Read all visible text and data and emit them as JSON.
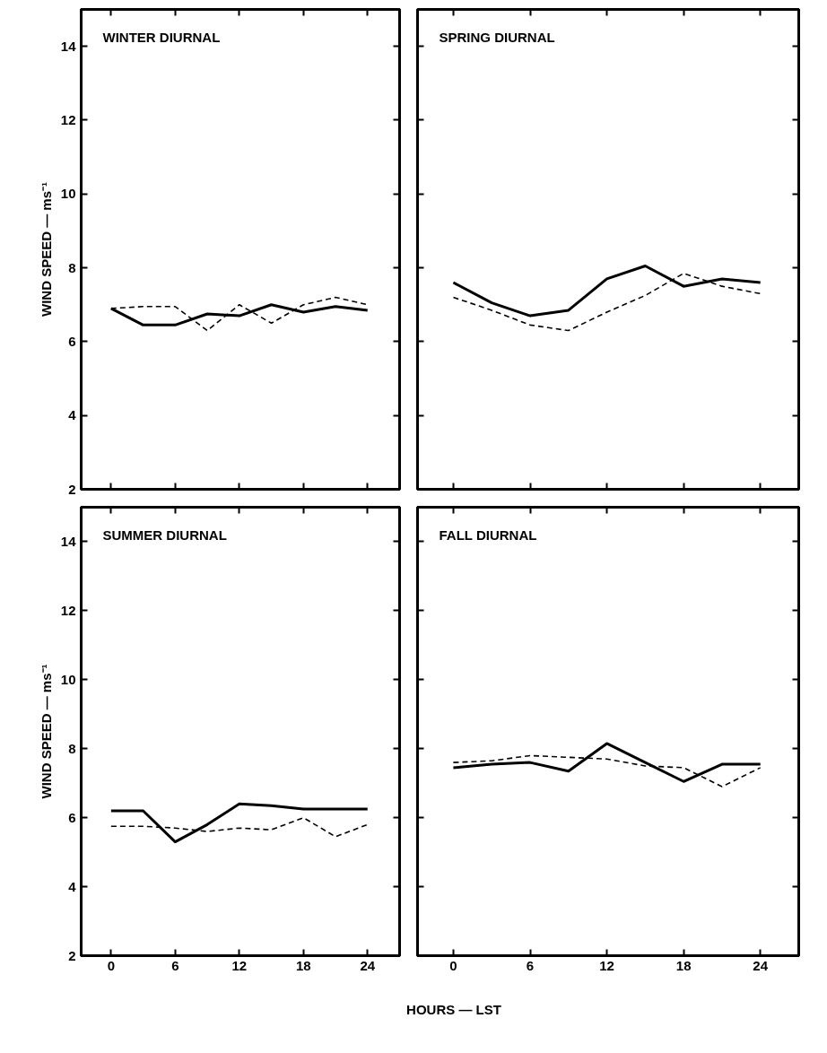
{
  "chart_data": [
    {
      "type": "line",
      "title": "WINTER DIURNAL",
      "ylabel": "WIND SPEED — ms⁻¹",
      "x": [
        0,
        3,
        6,
        9,
        12,
        15,
        18,
        21,
        24
      ],
      "xlim": [
        -2.8,
        27
      ],
      "xticks": [
        0,
        6,
        12,
        18,
        24
      ],
      "ylim": [
        2,
        15
      ],
      "yticks": [
        2,
        4,
        6,
        8,
        10,
        12,
        14
      ],
      "tick_labels": "y",
      "series": [
        {
          "color": "#000000",
          "line_style": "solid",
          "values": [
            6.9,
            6.45,
            6.45,
            6.75,
            6.7,
            7.0,
            6.8,
            6.95,
            6.85
          ]
        },
        {
          "color": "#000000",
          "line_style": "dashed",
          "values": [
            6.9,
            6.95,
            6.95,
            6.3,
            7.0,
            6.5,
            7.0,
            7.2,
            7.0
          ]
        }
      ]
    },
    {
      "type": "line",
      "title": "SPRING DIURNAL",
      "x": [
        0,
        3,
        6,
        9,
        12,
        15,
        18,
        21,
        24
      ],
      "xlim": [
        -2.8,
        27
      ],
      "xticks": [
        0,
        6,
        12,
        18,
        24
      ],
      "ylim": [
        2,
        15
      ],
      "yticks": [
        2,
        4,
        6,
        8,
        10,
        12,
        14
      ],
      "tick_labels": false,
      "series": [
        {
          "color": "#000000",
          "line_style": "solid",
          "values": [
            7.6,
            7.05,
            6.7,
            6.85,
            7.7,
            8.05,
            7.5,
            7.7,
            7.6
          ]
        },
        {
          "color": "#000000",
          "line_style": "dashed",
          "values": [
            7.2,
            6.85,
            6.45,
            6.3,
            6.8,
            7.25,
            7.85,
            7.5,
            7.3
          ]
        }
      ]
    },
    {
      "type": "line",
      "title": "SUMMER DIURNAL",
      "ylabel": "WIND SPEED — ms⁻¹",
      "x": [
        0,
        3,
        6,
        9,
        12,
        15,
        18,
        21,
        24
      ],
      "xlim": [
        -2.8,
        27
      ],
      "xticks": [
        0,
        6,
        12,
        18,
        24
      ],
      "ylim": [
        2,
        15
      ],
      "yticks": [
        2,
        4,
        6,
        8,
        10,
        12,
        14
      ],
      "series": [
        {
          "color": "#000000",
          "line_style": "solid",
          "values": [
            6.2,
            6.2,
            5.3,
            5.8,
            6.4,
            6.35,
            6.25,
            6.25,
            6.25
          ]
        },
        {
          "color": "#000000",
          "line_style": "dashed",
          "values": [
            5.75,
            5.75,
            5.7,
            5.6,
            5.7,
            5.65,
            6.0,
            5.45,
            5.8
          ]
        }
      ]
    },
    {
      "type": "line",
      "title": "FALL DIURNAL",
      "xlabel": "HOURS — LST",
      "x": [
        0,
        3,
        6,
        9,
        12,
        15,
        18,
        21,
        24
      ],
      "xlim": [
        -2.8,
        27
      ],
      "xticks": [
        0,
        6,
        12,
        18,
        24
      ],
      "ylim": [
        2,
        15
      ],
      "yticks": [
        2,
        4,
        6,
        8,
        10,
        12,
        14
      ],
      "tick_labels": "x",
      "series": [
        {
          "color": "#000000",
          "line_style": "solid",
          "values": [
            7.45,
            7.55,
            7.6,
            7.35,
            8.15,
            7.6,
            7.05,
            7.55,
            7.55
          ]
        },
        {
          "color": "#000000",
          "line_style": "dashed",
          "values": [
            7.6,
            7.65,
            7.8,
            7.75,
            7.7,
            7.5,
            7.45,
            6.9,
            7.45
          ]
        }
      ]
    }
  ]
}
